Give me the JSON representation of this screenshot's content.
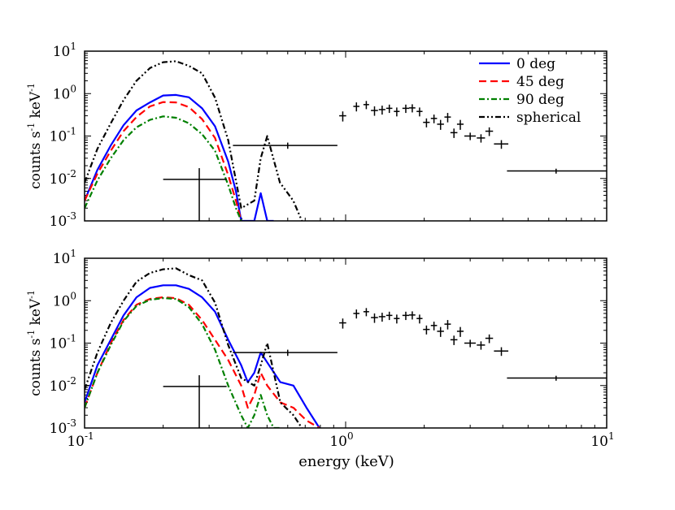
{
  "chart_data": [
    {
      "type": "line",
      "panel": "top",
      "xscale": "log",
      "yscale": "log",
      "xlim": [
        0.1,
        10
      ],
      "ylim": [
        0.001,
        10
      ],
      "ylabel_parts": [
        "counts s",
        "-1",
        " keV",
        "-1"
      ],
      "legend": {
        "placement": "top-right",
        "entries": [
          "0 deg",
          "45 deg",
          "90 deg",
          "spherical"
        ]
      },
      "series": [
        {
          "name": "0 deg",
          "color": "#0000ff",
          "dash": "solid",
          "x": [
            0.1,
            0.112,
            0.126,
            0.141,
            0.158,
            0.178,
            0.2,
            0.224,
            0.251,
            0.282,
            0.316,
            0.355,
            0.38,
            0.398,
            0.447,
            0.473,
            0.501,
            0.53
          ],
          "y": [
            0.003,
            0.016,
            0.06,
            0.18,
            0.4,
            0.62,
            0.9,
            0.93,
            0.82,
            0.45,
            0.17,
            0.025,
            0.005,
            0.001,
            0.001,
            0.0045,
            0.001,
            0.001
          ]
        },
        {
          "name": "45 deg",
          "color": "#ff0000",
          "dash": "dashed",
          "x": [
            0.1,
            0.112,
            0.126,
            0.141,
            0.158,
            0.178,
            0.2,
            0.224,
            0.251,
            0.282,
            0.316,
            0.355,
            0.38,
            0.398
          ],
          "y": [
            0.003,
            0.013,
            0.045,
            0.13,
            0.28,
            0.5,
            0.63,
            0.62,
            0.48,
            0.25,
            0.09,
            0.012,
            0.003,
            0.001
          ]
        },
        {
          "name": "90 deg",
          "color": "#008000",
          "dash": "dashdot",
          "x": [
            0.1,
            0.112,
            0.126,
            0.141,
            0.158,
            0.178,
            0.2,
            0.224,
            0.251,
            0.282,
            0.316,
            0.355,
            0.38,
            0.398
          ],
          "y": [
            0.002,
            0.009,
            0.03,
            0.08,
            0.16,
            0.24,
            0.29,
            0.27,
            0.2,
            0.11,
            0.045,
            0.007,
            0.002,
            0.001
          ]
        },
        {
          "name": "spherical",
          "color": "#000000",
          "dash": "dashdotdot",
          "x": [
            0.1,
            0.112,
            0.126,
            0.141,
            0.158,
            0.178,
            0.2,
            0.224,
            0.251,
            0.282,
            0.316,
            0.355,
            0.398,
            0.447,
            0.473,
            0.501,
            0.56,
            0.63,
            0.68
          ],
          "y": [
            0.008,
            0.05,
            0.2,
            0.7,
            2.0,
            4.0,
            5.5,
            5.8,
            4.5,
            3.0,
            0.8,
            0.08,
            0.002,
            0.003,
            0.03,
            0.1,
            0.008,
            0.003,
            0.001
          ]
        }
      ],
      "data_points": [
        {
          "x": 0.098,
          "y": 0.01,
          "xerr": [
            0.006,
            0.006
          ],
          "yerr": [
            0.0,
            0.0
          ]
        },
        {
          "x": 0.275,
          "y": 0.0095,
          "xerr": [
            0.075,
            0.075
          ],
          "yerr": [
            0.0095,
            0.008
          ]
        },
        {
          "x": 0.6,
          "y": 0.06,
          "xerr": [
            0.23,
            0.33
          ],
          "yerr": [
            0.01,
            0.01
          ]
        },
        {
          "x": 0.975,
          "y": 0.3,
          "xerr": [
            0.03,
            0.03
          ],
          "yerr": [
            0.08,
            0.08
          ]
        },
        {
          "x": 1.1,
          "y": 0.5,
          "xerr": [
            0.03,
            0.03
          ],
          "yerr": [
            0.12,
            0.12
          ]
        },
        {
          "x": 1.2,
          "y": 0.55,
          "xerr": [
            0.03,
            0.03
          ],
          "yerr": [
            0.12,
            0.12
          ]
        },
        {
          "x": 1.29,
          "y": 0.4,
          "xerr": [
            0.04,
            0.04
          ],
          "yerr": [
            0.1,
            0.1
          ]
        },
        {
          "x": 1.38,
          "y": 0.42,
          "xerr": [
            0.04,
            0.04
          ],
          "yerr": [
            0.1,
            0.1
          ]
        },
        {
          "x": 1.47,
          "y": 0.45,
          "xerr": [
            0.04,
            0.04
          ],
          "yerr": [
            0.1,
            0.1
          ]
        },
        {
          "x": 1.57,
          "y": 0.38,
          "xerr": [
            0.04,
            0.04
          ],
          "yerr": [
            0.09,
            0.09
          ]
        },
        {
          "x": 1.7,
          "y": 0.45,
          "xerr": [
            0.05,
            0.05
          ],
          "yerr": [
            0.1,
            0.1
          ]
        },
        {
          "x": 1.8,
          "y": 0.46,
          "xerr": [
            0.05,
            0.05
          ],
          "yerr": [
            0.1,
            0.1
          ]
        },
        {
          "x": 1.92,
          "y": 0.38,
          "xerr": [
            0.05,
            0.05
          ],
          "yerr": [
            0.09,
            0.09
          ]
        },
        {
          "x": 2.04,
          "y": 0.21,
          "xerr": [
            0.06,
            0.06
          ],
          "yerr": [
            0.05,
            0.05
          ]
        },
        {
          "x": 2.18,
          "y": 0.26,
          "xerr": [
            0.06,
            0.06
          ],
          "yerr": [
            0.06,
            0.06
          ]
        },
        {
          "x": 2.31,
          "y": 0.19,
          "xerr": [
            0.07,
            0.07
          ],
          "yerr": [
            0.05,
            0.05
          ]
        },
        {
          "x": 2.46,
          "y": 0.28,
          "xerr": [
            0.07,
            0.07
          ],
          "yerr": [
            0.07,
            0.07
          ]
        },
        {
          "x": 2.6,
          "y": 0.12,
          "xerr": [
            0.08,
            0.08
          ],
          "yerr": [
            0.03,
            0.03
          ]
        },
        {
          "x": 2.75,
          "y": 0.19,
          "xerr": [
            0.08,
            0.08
          ],
          "yerr": [
            0.05,
            0.05
          ]
        },
        {
          "x": 3.0,
          "y": 0.1,
          "xerr": [
            0.15,
            0.15
          ],
          "yerr": [
            0.02,
            0.02
          ]
        },
        {
          "x": 3.3,
          "y": 0.09,
          "xerr": [
            0.12,
            0.12
          ],
          "yerr": [
            0.02,
            0.02
          ]
        },
        {
          "x": 3.55,
          "y": 0.13,
          "xerr": [
            0.12,
            0.12
          ],
          "yerr": [
            0.03,
            0.03
          ]
        },
        {
          "x": 3.95,
          "y": 0.065,
          "xerr": [
            0.25,
            0.25
          ],
          "yerr": [
            0.015,
            0.015
          ]
        },
        {
          "x": 6.4,
          "y": 0.015,
          "xerr": [
            2.25,
            4.0
          ],
          "yerr": [
            0.002,
            0.002
          ]
        }
      ]
    },
    {
      "type": "line",
      "panel": "bottom",
      "xscale": "log",
      "yscale": "log",
      "xlim": [
        0.1,
        10
      ],
      "ylim": [
        0.001,
        10
      ],
      "xlabel": "energy (keV)",
      "ylabel_parts": [
        "counts s",
        "-1",
        " keV",
        "-1"
      ],
      "series": [
        {
          "name": "0 deg",
          "color": "#0000ff",
          "dash": "solid",
          "x": [
            0.1,
            0.112,
            0.126,
            0.141,
            0.158,
            0.178,
            0.2,
            0.224,
            0.251,
            0.282,
            0.316,
            0.355,
            0.398,
            0.422,
            0.447,
            0.473,
            0.501,
            0.562,
            0.631,
            0.708,
            0.794
          ],
          "y": [
            0.004,
            0.03,
            0.12,
            0.45,
            1.2,
            2.0,
            2.3,
            2.3,
            1.9,
            1.2,
            0.55,
            0.12,
            0.03,
            0.012,
            0.02,
            0.06,
            0.035,
            0.012,
            0.01,
            0.003,
            0.001
          ]
        },
        {
          "name": "45 deg",
          "color": "#ff0000",
          "dash": "dashed",
          "x": [
            0.1,
            0.112,
            0.126,
            0.141,
            0.158,
            0.178,
            0.2,
            0.224,
            0.251,
            0.282,
            0.316,
            0.355,
            0.398,
            0.422,
            0.447,
            0.473,
            0.501,
            0.562,
            0.631,
            0.708,
            0.794
          ],
          "y": [
            0.003,
            0.02,
            0.1,
            0.35,
            0.8,
            1.1,
            1.2,
            1.15,
            0.8,
            0.35,
            0.12,
            0.04,
            0.01,
            0.003,
            0.006,
            0.02,
            0.01,
            0.004,
            0.003,
            0.0015,
            0.001
          ]
        },
        {
          "name": "90 deg",
          "color": "#008000",
          "dash": "dashdot",
          "x": [
            0.1,
            0.112,
            0.126,
            0.141,
            0.158,
            0.178,
            0.2,
            0.224,
            0.251,
            0.282,
            0.316,
            0.355,
            0.398,
            0.422,
            0.447,
            0.473,
            0.501,
            0.53,
            0.562
          ],
          "y": [
            0.003,
            0.02,
            0.09,
            0.33,
            0.75,
            1.05,
            1.15,
            1.1,
            0.7,
            0.28,
            0.07,
            0.01,
            0.002,
            0.001,
            0.002,
            0.006,
            0.002,
            0.001,
            0.001
          ]
        },
        {
          "name": "spherical",
          "color": "#000000",
          "dash": "dashdotdot",
          "x": [
            0.1,
            0.112,
            0.126,
            0.141,
            0.158,
            0.178,
            0.2,
            0.224,
            0.251,
            0.282,
            0.316,
            0.355,
            0.398,
            0.447,
            0.473,
            0.501,
            0.562,
            0.631,
            0.68
          ],
          "y": [
            0.008,
            0.06,
            0.3,
            1.0,
            2.8,
            4.5,
            5.5,
            5.8,
            4.0,
            3.0,
            0.9,
            0.09,
            0.015,
            0.01,
            0.03,
            0.1,
            0.004,
            0.002,
            0.001
          ]
        }
      ],
      "data_points": [
        {
          "x": 0.098,
          "y": 0.01,
          "xerr": [
            0.006,
            0.006
          ],
          "yerr": [
            0.0,
            0.0
          ]
        },
        {
          "x": 0.275,
          "y": 0.0095,
          "xerr": [
            0.075,
            0.075
          ],
          "yerr": [
            0.0095,
            0.008
          ]
        },
        {
          "x": 0.6,
          "y": 0.06,
          "xerr": [
            0.23,
            0.33
          ],
          "yerr": [
            0.01,
            0.01
          ]
        },
        {
          "x": 0.975,
          "y": 0.3,
          "xerr": [
            0.03,
            0.03
          ],
          "yerr": [
            0.08,
            0.08
          ]
        },
        {
          "x": 1.1,
          "y": 0.5,
          "xerr": [
            0.03,
            0.03
          ],
          "yerr": [
            0.12,
            0.12
          ]
        },
        {
          "x": 1.2,
          "y": 0.55,
          "xerr": [
            0.03,
            0.03
          ],
          "yerr": [
            0.12,
            0.12
          ]
        },
        {
          "x": 1.29,
          "y": 0.4,
          "xerr": [
            0.04,
            0.04
          ],
          "yerr": [
            0.1,
            0.1
          ]
        },
        {
          "x": 1.38,
          "y": 0.42,
          "xerr": [
            0.04,
            0.04
          ],
          "yerr": [
            0.1,
            0.1
          ]
        },
        {
          "x": 1.47,
          "y": 0.45,
          "xerr": [
            0.04,
            0.04
          ],
          "yerr": [
            0.1,
            0.1
          ]
        },
        {
          "x": 1.57,
          "y": 0.38,
          "xerr": [
            0.04,
            0.04
          ],
          "yerr": [
            0.09,
            0.09
          ]
        },
        {
          "x": 1.7,
          "y": 0.45,
          "xerr": [
            0.05,
            0.05
          ],
          "yerr": [
            0.1,
            0.1
          ]
        },
        {
          "x": 1.8,
          "y": 0.46,
          "xerr": [
            0.05,
            0.05
          ],
          "yerr": [
            0.1,
            0.1
          ]
        },
        {
          "x": 1.92,
          "y": 0.38,
          "xerr": [
            0.05,
            0.05
          ],
          "yerr": [
            0.09,
            0.09
          ]
        },
        {
          "x": 2.04,
          "y": 0.21,
          "xerr": [
            0.06,
            0.06
          ],
          "yerr": [
            0.05,
            0.05
          ]
        },
        {
          "x": 2.18,
          "y": 0.26,
          "xerr": [
            0.06,
            0.06
          ],
          "yerr": [
            0.06,
            0.06
          ]
        },
        {
          "x": 2.31,
          "y": 0.19,
          "xerr": [
            0.07,
            0.07
          ],
          "yerr": [
            0.05,
            0.05
          ]
        },
        {
          "x": 2.46,
          "y": 0.28,
          "xerr": [
            0.07,
            0.07
          ],
          "yerr": [
            0.07,
            0.07
          ]
        },
        {
          "x": 2.6,
          "y": 0.12,
          "xerr": [
            0.08,
            0.08
          ],
          "yerr": [
            0.03,
            0.03
          ]
        },
        {
          "x": 2.75,
          "y": 0.19,
          "xerr": [
            0.08,
            0.08
          ],
          "yerr": [
            0.05,
            0.05
          ]
        },
        {
          "x": 3.0,
          "y": 0.1,
          "xerr": [
            0.15,
            0.15
          ],
          "yerr": [
            0.02,
            0.02
          ]
        },
        {
          "x": 3.3,
          "y": 0.09,
          "xerr": [
            0.12,
            0.12
          ],
          "yerr": [
            0.02,
            0.02
          ]
        },
        {
          "x": 3.55,
          "y": 0.13,
          "xerr": [
            0.12,
            0.12
          ],
          "yerr": [
            0.03,
            0.03
          ]
        },
        {
          "x": 3.95,
          "y": 0.065,
          "xerr": [
            0.25,
            0.25
          ],
          "yerr": [
            0.015,
            0.015
          ]
        },
        {
          "x": 6.4,
          "y": 0.015,
          "xerr": [
            2.25,
            4.0
          ],
          "yerr": [
            0.002,
            0.002
          ]
        }
      ]
    }
  ]
}
